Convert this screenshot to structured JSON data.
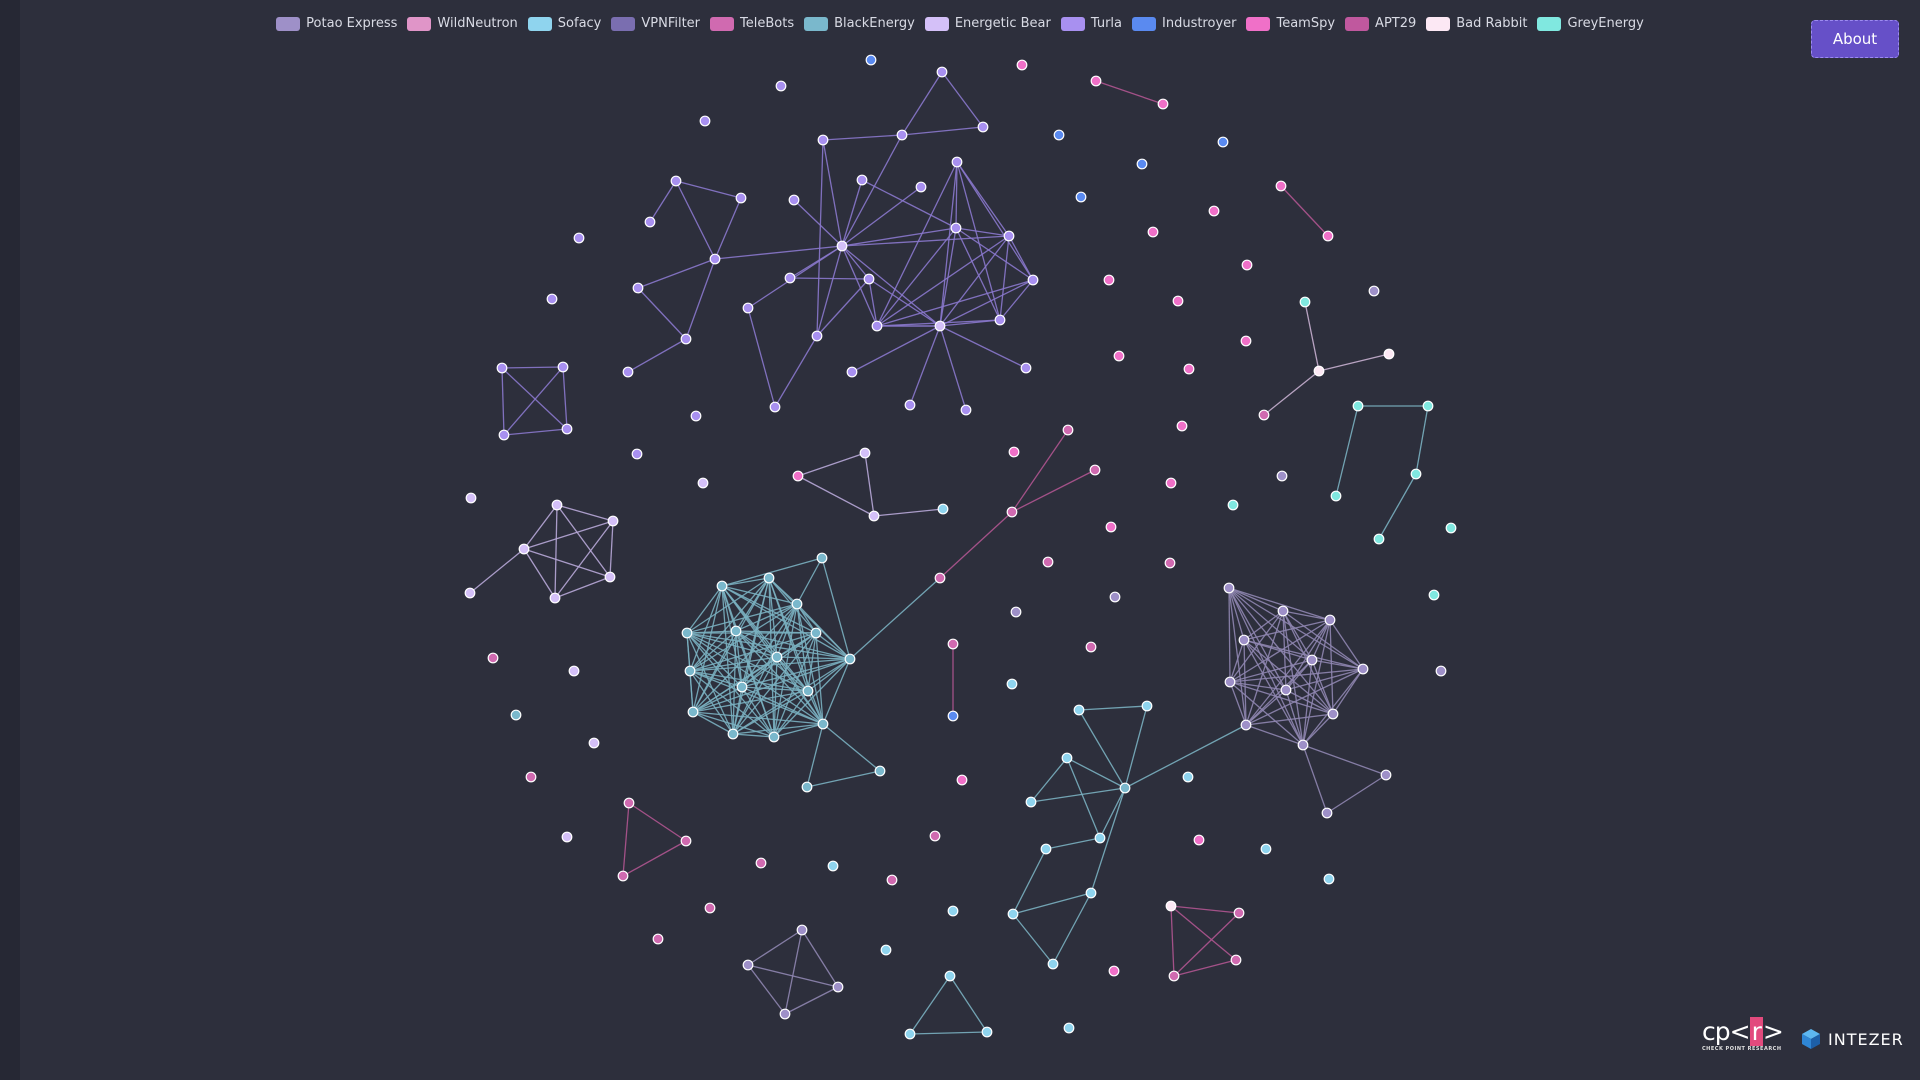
{
  "legend": [
    {
      "label": "Potao Express",
      "color": "#9e90c8"
    },
    {
      "label": "WildNeutron",
      "color": "#e095c8"
    },
    {
      "label": "Sofacy",
      "color": "#8fd4ee"
    },
    {
      "label": "VPNFilter",
      "color": "#7a6eb0"
    },
    {
      "label": "TeleBots",
      "color": "#d06ab0"
    },
    {
      "label": "BlackEnergy",
      "color": "#7ab8cc"
    },
    {
      "label": "Energetic Bear",
      "color": "#d4c0f8"
    },
    {
      "label": "Turla",
      "color": "#a890f0"
    },
    {
      "label": "Industroyer",
      "color": "#5a8af0"
    },
    {
      "label": "TeamSpy",
      "color": "#f070c8"
    },
    {
      "label": "APT29",
      "color": "#c0589e"
    },
    {
      "label": "Bad Rabbit",
      "color": "#fce8f4"
    },
    {
      "label": "GreyEnergy",
      "color": "#80e8e0"
    }
  ],
  "about_label": "About",
  "logos": {
    "cpr_main": "cp<r>",
    "cpr_sub": "CHECK POINT RESEARCH",
    "intezer": "INTEZER"
  }
}
